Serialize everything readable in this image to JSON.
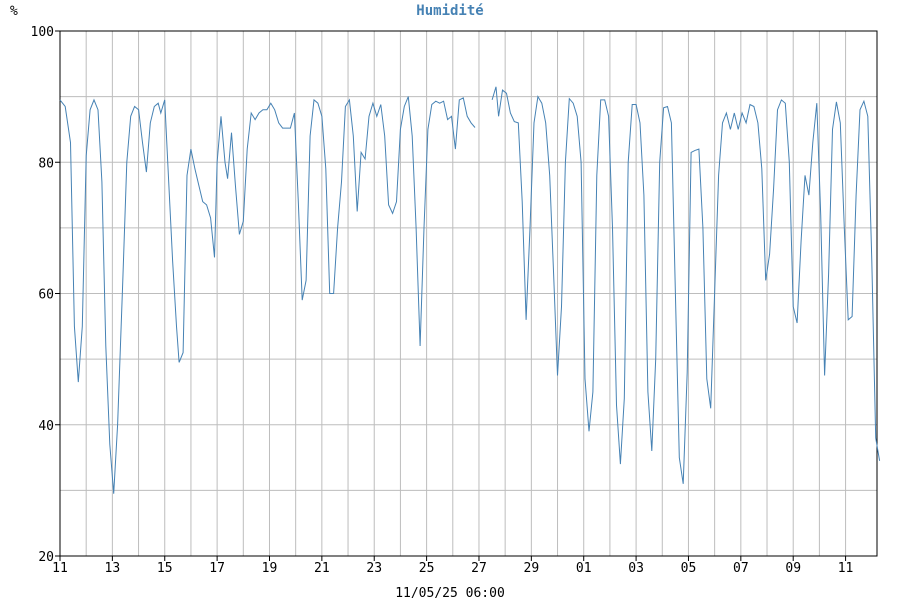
{
  "chart_data": {
    "type": "line",
    "title": "Humidité",
    "ylabel": "%",
    "xlabel": "11/05/25 06:00",
    "ylim": [
      20,
      100
    ],
    "y_ticks": [
      20,
      40,
      60,
      80,
      100
    ],
    "x_tick_labels": [
      "11",
      "13",
      "15",
      "17",
      "19",
      "21",
      "23",
      "25",
      "27",
      "29",
      "01",
      "03",
      "05",
      "07",
      "09",
      "11"
    ],
    "x_range_days": [
      0,
      31.2
    ],
    "grid": true,
    "colors": {
      "line": "#4682b4",
      "title": "#4682b4",
      "grid": "#bdbdbd",
      "frame": "#000000"
    },
    "series": [
      {
        "segments": [
          [
            [
              0.0,
              89.5
            ],
            [
              0.2,
              88.5
            ],
            [
              0.4,
              83
            ],
            [
              0.55,
              55
            ],
            [
              0.7,
              46.5
            ],
            [
              0.85,
              55
            ],
            [
              1.0,
              81
            ],
            [
              1.15,
              88
            ],
            [
              1.3,
              89.5
            ],
            [
              1.45,
              88
            ],
            [
              1.6,
              77
            ],
            [
              1.75,
              52
            ],
            [
              1.9,
              37
            ],
            [
              2.05,
              29.5
            ],
            [
              2.2,
              40
            ],
            [
              2.4,
              62
            ],
            [
              2.55,
              80
            ],
            [
              2.7,
              87
            ],
            [
              2.85,
              88.5
            ],
            [
              3.0,
              88
            ],
            [
              3.15,
              83
            ],
            [
              3.3,
              78.5
            ],
            [
              3.45,
              86
            ],
            [
              3.6,
              88.5
            ],
            [
              3.75,
              89
            ],
            [
              3.85,
              87.5
            ],
            [
              4.0,
              89.5
            ],
            [
              4.15,
              77
            ],
            [
              4.3,
              65
            ],
            [
              4.45,
              55
            ],
            [
              4.55,
              49.5
            ],
            [
              4.7,
              51
            ],
            [
              4.85,
              78
            ],
            [
              5.0,
              82
            ],
            [
              5.15,
              79
            ],
            [
              5.3,
              76.5
            ],
            [
              5.45,
              74
            ],
            [
              5.6,
              73.5
            ],
            [
              5.75,
              71.5
            ],
            [
              5.9,
              65.5
            ],
            [
              6.0,
              80
            ],
            [
              6.15,
              87
            ],
            [
              6.3,
              80
            ],
            [
              6.4,
              77.5
            ],
            [
              6.55,
              84.5
            ],
            [
              6.7,
              76.5
            ],
            [
              6.85,
              69
            ],
            [
              7.0,
              71
            ],
            [
              7.15,
              82
            ],
            [
              7.3,
              87.5
            ],
            [
              7.45,
              86.5
            ],
            [
              7.6,
              87.5
            ],
            [
              7.75,
              88
            ],
            [
              7.9,
              88
            ],
            [
              8.05,
              89
            ],
            [
              8.2,
              88
            ],
            [
              8.35,
              86
            ],
            [
              8.5,
              85.2
            ],
            [
              8.65,
              85.2
            ],
            [
              8.8,
              85.2
            ],
            [
              8.95,
              87.5
            ],
            [
              9.1,
              74
            ],
            [
              9.25,
              59
            ],
            [
              9.4,
              62
            ],
            [
              9.55,
              84
            ],
            [
              9.7,
              89.5
            ],
            [
              9.85,
              89
            ],
            [
              10.0,
              87
            ],
            [
              10.15,
              79
            ],
            [
              10.3,
              60
            ],
            [
              10.45,
              60
            ],
            [
              10.6,
              70
            ],
            [
              10.75,
              77
            ],
            [
              10.9,
              88.5
            ],
            [
              11.05,
              89.5
            ],
            [
              11.2,
              84
            ],
            [
              11.35,
              72.5
            ],
            [
              11.5,
              81.5
            ],
            [
              11.65,
              80.5
            ],
            [
              11.8,
              87
            ],
            [
              11.95,
              89
            ],
            [
              12.1,
              87
            ],
            [
              12.25,
              88.8
            ],
            [
              12.4,
              84
            ],
            [
              12.55,
              73.5
            ],
            [
              12.7,
              72.2
            ],
            [
              12.85,
              74
            ],
            [
              13.0,
              85
            ],
            [
              13.15,
              88.5
            ],
            [
              13.3,
              90
            ],
            [
              13.45,
              84
            ],
            [
              13.6,
              70
            ],
            [
              13.75,
              52
            ],
            [
              13.9,
              70
            ],
            [
              14.05,
              85
            ],
            [
              14.2,
              88.8
            ],
            [
              14.35,
              89.3
            ],
            [
              14.5,
              89
            ],
            [
              14.65,
              89.3
            ],
            [
              14.8,
              86.5
            ],
            [
              14.95,
              87
            ],
            [
              15.1,
              82
            ],
            [
              15.25,
              89.5
            ],
            [
              15.4,
              89.8
            ],
            [
              15.55,
              87
            ],
            [
              15.7,
              86
            ],
            [
              15.85,
              85.3
            ]
          ],
          [
            [
              16.5,
              89.5
            ],
            [
              16.65,
              91.5
            ],
            [
              16.75,
              87
            ],
            [
              16.9,
              91
            ],
            [
              17.05,
              90.5
            ],
            [
              17.2,
              87.5
            ],
            [
              17.35,
              86.2
            ],
            [
              17.5,
              86
            ],
            [
              17.65,
              74
            ],
            [
              17.8,
              56
            ],
            [
              17.95,
              70
            ],
            [
              18.1,
              86
            ],
            [
              18.25,
              90
            ],
            [
              18.4,
              89
            ],
            [
              18.55,
              86
            ],
            [
              18.7,
              78
            ],
            [
              18.85,
              63
            ],
            [
              19.0,
              47.5
            ],
            [
              19.15,
              58
            ],
            [
              19.3,
              80
            ],
            [
              19.45,
              89.7
            ],
            [
              19.6,
              89
            ],
            [
              19.75,
              87
            ],
            [
              19.9,
              80
            ],
            [
              20.05,
              47
            ],
            [
              20.2,
              39
            ],
            [
              20.35,
              45
            ],
            [
              20.5,
              78
            ],
            [
              20.65,
              89.5
            ],
            [
              20.8,
              89.5
            ],
            [
              20.95,
              87
            ],
            [
              21.1,
              70
            ],
            [
              21.25,
              43
            ],
            [
              21.4,
              34
            ],
            [
              21.55,
              44
            ],
            [
              21.7,
              80
            ],
            [
              21.85,
              88.8
            ],
            [
              22.0,
              88.8
            ],
            [
              22.15,
              86
            ],
            [
              22.3,
              75
            ],
            [
              22.45,
              45
            ],
            [
              22.6,
              36
            ],
            [
              22.75,
              50
            ],
            [
              22.9,
              80
            ],
            [
              23.05,
              88.3
            ],
            [
              23.2,
              88.5
            ],
            [
              23.35,
              86
            ],
            [
              23.5,
              60
            ],
            [
              23.65,
              35
            ],
            [
              23.8,
              31
            ],
            [
              23.95,
              48
            ],
            [
              24.1,
              81.5
            ],
            [
              24.25,
              81.8
            ],
            [
              24.4,
              82
            ],
            [
              24.55,
              70
            ],
            [
              24.7,
              47
            ],
            [
              24.85,
              42.5
            ],
            [
              25.0,
              60
            ],
            [
              25.15,
              78
            ],
            [
              25.3,
              86
            ],
            [
              25.45,
              87.5
            ],
            [
              25.6,
              85
            ],
            [
              25.75,
              87.5
            ],
            [
              25.9,
              85
            ],
            [
              26.05,
              87.5
            ],
            [
              26.2,
              86
            ],
            [
              26.35,
              88.8
            ],
            [
              26.5,
              88.5
            ],
            [
              26.65,
              86
            ],
            [
              26.8,
              79
            ],
            [
              26.95,
              62
            ],
            [
              27.1,
              66
            ],
            [
              27.25,
              76
            ],
            [
              27.4,
              88
            ],
            [
              27.55,
              89.5
            ],
            [
              27.7,
              89
            ],
            [
              27.85,
              80
            ],
            [
              28.0,
              58
            ],
            [
              28.15,
              55.5
            ],
            [
              28.3,
              68
            ],
            [
              28.45,
              78
            ],
            [
              28.6,
              75
            ],
            [
              28.75,
              83
            ],
            [
              28.9,
              89
            ],
            [
              29.05,
              72
            ],
            [
              29.2,
              47.5
            ],
            [
              29.35,
              63
            ],
            [
              29.5,
              85
            ],
            [
              29.65,
              89.2
            ],
            [
              29.8,
              86
            ],
            [
              29.95,
              70
            ],
            [
              30.1,
              56
            ],
            [
              30.25,
              56.5
            ],
            [
              30.4,
              75
            ],
            [
              30.55,
              88
            ],
            [
              30.7,
              89.3
            ],
            [
              30.85,
              87
            ],
            [
              31.0,
              65
            ],
            [
              31.15,
              38
            ],
            [
              31.3,
              34.5
            ]
          ]
        ]
      }
    ]
  }
}
